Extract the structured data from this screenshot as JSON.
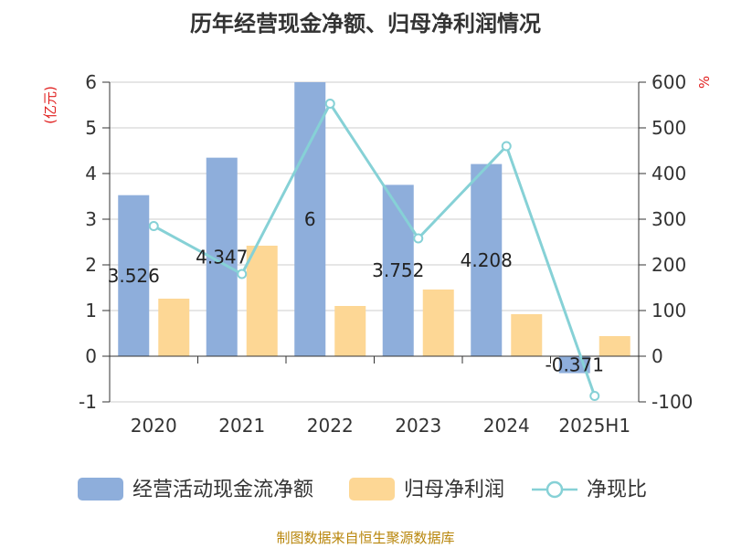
{
  "chart_data": {
    "type": "bar",
    "title": "历年经营现金净额、归母净利润情况",
    "categories": [
      "2020",
      "2021",
      "2022",
      "2023",
      "2024",
      "2025H1"
    ],
    "series": [
      {
        "name": "经营活动现金流净额",
        "kind": "bar",
        "axis": "left",
        "color": "#8eaedb",
        "values": [
          3.526,
          4.347,
          6,
          3.752,
          4.208,
          -0.371
        ],
        "labels": [
          "3.526",
          "4.347",
          "6",
          "3.752",
          "4.208",
          "-0.371"
        ]
      },
      {
        "name": "归母净利润",
        "kind": "bar",
        "axis": "left",
        "color": "#fdd795",
        "values": [
          1.26,
          2.42,
          1.1,
          1.46,
          0.92,
          0.44
        ]
      },
      {
        "name": "净现比",
        "kind": "line",
        "axis": "right",
        "color": "#86d1d6",
        "values": [
          285,
          180,
          553,
          258,
          460,
          -87
        ]
      }
    ],
    "y_left": {
      "unit": "(亿元)",
      "min": -1,
      "max": 6,
      "ticks": [
        "-1",
        "0",
        "1",
        "2",
        "3",
        "4",
        "5",
        "6"
      ]
    },
    "y_right": {
      "unit": "%",
      "min": -100,
      "max": 600,
      "ticks": [
        "-100",
        "0",
        "100",
        "200",
        "300",
        "400",
        "500",
        "600"
      ]
    },
    "grid": true,
    "legend_position": "bottom"
  },
  "source": "制图数据来自恒生聚源数据库"
}
